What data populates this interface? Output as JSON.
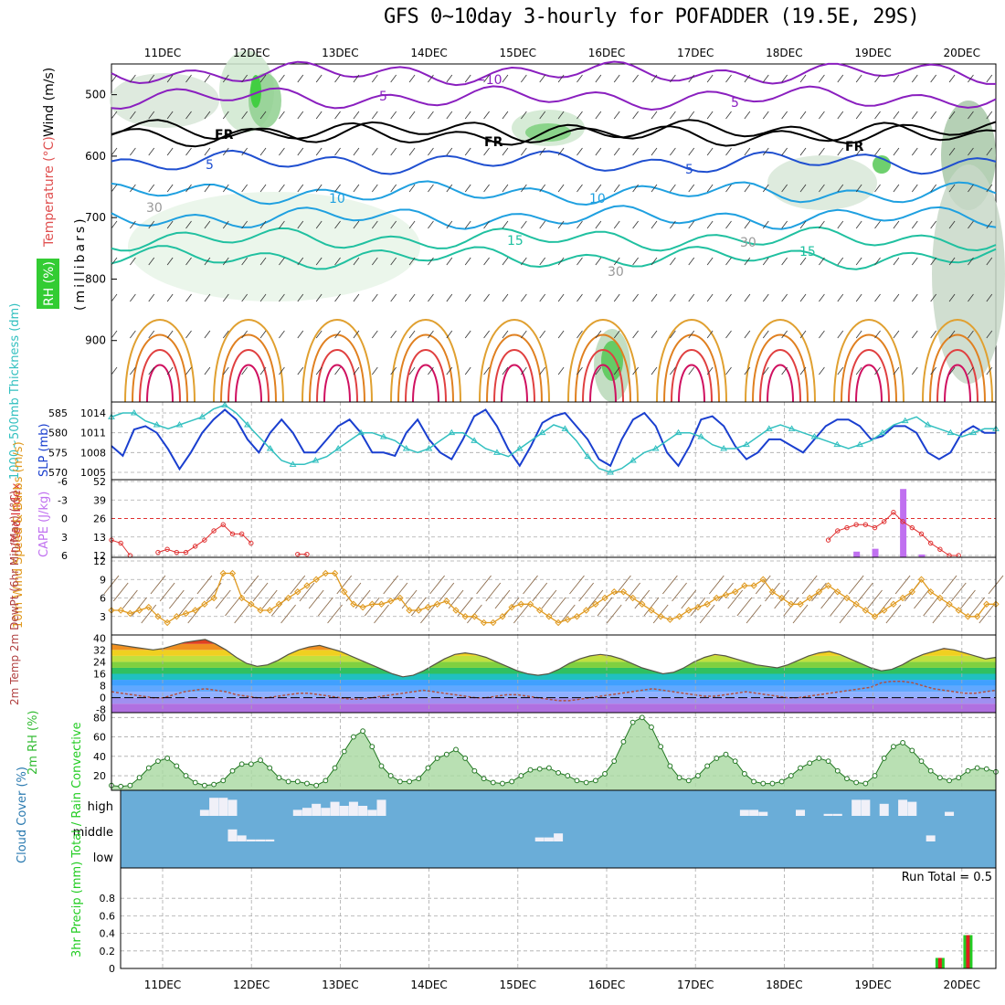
{
  "title": "GFS 0~10day 3-hourly for POFADDER (19.5E, 29S)",
  "colors": {
    "temperature_label": "#e05050",
    "wind_label": "#000000",
    "rh_label": "#22bb22",
    "slp": "#1a3fcf",
    "thickness": "#33c0c0",
    "lifted_index": "#e03030",
    "cape": "#c070f0",
    "wind10": "#e09a20",
    "rh2m": "#33bb33",
    "cloud_bg": "#6aadd8",
    "precip_total": "#22cc22",
    "precip_convective": "#e02020"
  },
  "chart_data": [
    {
      "panel": "upper-air",
      "type": "contour",
      "date_labels": [
        "11DEC",
        "12DEC",
        "13DEC",
        "14DEC",
        "15DEC",
        "16DEC",
        "17DEC",
        "18DEC",
        "19DEC",
        "20DEC"
      ],
      "ylabel_parts": [
        "RH (%)",
        "Temperature (°C)",
        "Wind (m/s)"
      ],
      "ylabel_unit": "(millibars)",
      "yticks": [
        "500",
        "600",
        "700",
        "800",
        "900"
      ],
      "ylim": [
        450,
        1000
      ],
      "contour_labels": [
        "−10",
        "5",
        "FR",
        "FR",
        "FR",
        "5",
        "5",
        "5",
        "10",
        "10",
        "15",
        "15",
        "30",
        "30",
        "30"
      ]
    },
    {
      "panel": "slp-thickness",
      "type": "line",
      "ylabel_left": "1000~500mb Thickness (dm)",
      "ylabel_right": "SLP (mb)",
      "yticks_thickness": [
        "585",
        "580",
        "575",
        "570"
      ],
      "yticks_slp": [
        "1014",
        "1011",
        "1008",
        "1005"
      ],
      "series": [
        {
          "name": "SLP",
          "values": [
            1009,
            1007.5,
            1011.5,
            1012,
            1011,
            1008.5,
            1005.5,
            1008,
            1011,
            1013,
            1014.5,
            1013,
            1010,
            1008,
            1011,
            1013,
            1011,
            1008,
            1008,
            1010,
            1012,
            1013,
            1011,
            1008,
            1008,
            1007.5,
            1011,
            1013,
            1010,
            1008,
            1007,
            1010,
            1013.5,
            1014.5,
            1012,
            1008.5,
            1006,
            1009,
            1012.5,
            1013.5,
            1014,
            1012,
            1010,
            1007,
            1006,
            1010,
            1013,
            1014,
            1012,
            1008,
            1006,
            1009,
            1013,
            1013.5,
            1012,
            1009,
            1007,
            1008,
            1010,
            1010,
            1009,
            1008,
            1010,
            1012,
            1013,
            1013,
            1012,
            1010,
            1010.5,
            1012,
            1012,
            1011,
            1008,
            1007,
            1008,
            1011,
            1012,
            1011,
            1011
          ]
        },
        {
          "name": "Thickness",
          "values": [
            584,
            585,
            585,
            583,
            582,
            581,
            582,
            583,
            584,
            586,
            587,
            585,
            582,
            579,
            576,
            573,
            572,
            572,
            573,
            574,
            576,
            578,
            580,
            580,
            579,
            578,
            576,
            575,
            576,
            578,
            580,
            580,
            578,
            576,
            575,
            574,
            576,
            578,
            580,
            582,
            581,
            578,
            574,
            571,
            570,
            571,
            573,
            575,
            576,
            578,
            580,
            580,
            579,
            577,
            576,
            576,
            577,
            579,
            581,
            582,
            581,
            580,
            579,
            578,
            577,
            576,
            577,
            578,
            580,
            582,
            583,
            584,
            582,
            581,
            580,
            579,
            580,
            581,
            581
          ]
        }
      ]
    },
    {
      "panel": "lifted-index-cape",
      "type": "line+bar",
      "ylabel_left": "Lifted Index",
      "ylabel_right": "CAPE (J/kg)",
      "yticks_li": [
        "-6",
        "-3",
        "0",
        "3",
        "6"
      ],
      "yticks_cape": [
        "52",
        "39",
        "26",
        "13",
        "12"
      ],
      "lifted_index_segments": [
        {
          "x": [
            0,
            1,
            2
          ],
          "y": [
            3.5,
            4,
            6
          ]
        },
        {
          "x": [
            5,
            6,
            7,
            8,
            9,
            10,
            11,
            12,
            13,
            14,
            15
          ],
          "y": [
            5.5,
            5,
            5.5,
            5.5,
            4.5,
            3.5,
            2,
            1,
            2.5,
            2.5,
            4
          ]
        },
        {
          "x": [
            20,
            21
          ],
          "y": [
            5.8,
            5.8
          ]
        },
        {
          "x": [
            77,
            78,
            79,
            80,
            81,
            82,
            83,
            84,
            85,
            86,
            87,
            88,
            89,
            90,
            91
          ],
          "y": [
            3.5,
            2,
            1.5,
            1,
            1,
            1.5,
            0.5,
            -1,
            0.5,
            1.5,
            2.5,
            4,
            5,
            6,
            6
          ]
        }
      ],
      "cape_bars": [
        {
          "x": 80,
          "value": 4
        },
        {
          "x": 82,
          "value": 6
        },
        {
          "x": 85,
          "value": 48
        },
        {
          "x": 87,
          "value": 2
        }
      ]
    },
    {
      "panel": "wind10m",
      "type": "line",
      "ylabel": "10m Wind Speed & Barbs (m/s)",
      "yticks": [
        "12",
        "9",
        "6",
        "3"
      ],
      "ylim": [
        0,
        12
      ],
      "values": [
        4,
        4,
        3.5,
        4,
        4.5,
        3,
        2,
        3,
        3.5,
        4,
        5,
        6,
        10,
        10,
        6,
        5,
        4,
        4,
        5,
        6,
        7,
        8,
        9,
        10,
        10,
        7,
        5,
        4.5,
        5,
        5,
        5.5,
        6,
        4,
        4,
        4.5,
        5,
        5.5,
        4,
        3,
        3,
        2,
        2,
        3,
        4.5,
        5,
        5,
        4,
        3,
        2,
        2.5,
        3,
        4,
        5,
        6,
        7,
        7,
        6,
        5,
        4,
        3,
        2.5,
        3,
        4,
        4.5,
        5,
        6,
        6.5,
        7,
        8,
        8,
        9,
        7,
        6,
        5,
        5,
        6,
        7,
        8,
        7,
        6,
        5,
        4,
        3,
        4,
        5,
        6,
        7,
        9,
        7,
        6,
        5,
        4,
        3,
        3,
        5,
        5
      ]
    },
    {
      "panel": "temperature",
      "type": "area",
      "ylabel": "2m Temp 2m DewPt (6hr Min/Max) (°C)",
      "yticks": [
        "40",
        "32",
        "24",
        "16",
        "8",
        "0",
        "-8"
      ],
      "ylim": [
        -10,
        42
      ],
      "temp": [
        36,
        35,
        34,
        33,
        32,
        33,
        35,
        37,
        38,
        39,
        36,
        32,
        27,
        23,
        21,
        22,
        25,
        29,
        32,
        34,
        35,
        33,
        31,
        28,
        25,
        22,
        19,
        16,
        14,
        15,
        18,
        22,
        26,
        29,
        30,
        29,
        27,
        24,
        21,
        18,
        16,
        15,
        16,
        19,
        23,
        26,
        28,
        29,
        28,
        26,
        23,
        20,
        18,
        16,
        17,
        20,
        24,
        27,
        29,
        28,
        26,
        24,
        22,
        21,
        20,
        22,
        25,
        28,
        30,
        31,
        29,
        26,
        23,
        20,
        18,
        19,
        22,
        26,
        29,
        31,
        33,
        32,
        30,
        28,
        26,
        27
      ],
      "dewpt": [
        4,
        3,
        2,
        1,
        0,
        0,
        2,
        4,
        5,
        6,
        5,
        4,
        2,
        1,
        0,
        0,
        1,
        2,
        3,
        3,
        2,
        1,
        0,
        -1,
        -1,
        0,
        1,
        2,
        3,
        4,
        5,
        4,
        3,
        2,
        1,
        0,
        0,
        1,
        2,
        2,
        1,
        0,
        -1,
        -2,
        -2,
        -1,
        0,
        1,
        2,
        3,
        4,
        5,
        6,
        5,
        4,
        3,
        2,
        1,
        1,
        2,
        3,
        4,
        3,
        2,
        1,
        0,
        0,
        1,
        2,
        3,
        4,
        5,
        6,
        7,
        10,
        11,
        11,
        10,
        8,
        6,
        5,
        4,
        3,
        3,
        4,
        5
      ]
    },
    {
      "panel": "rh2m",
      "type": "area",
      "ylabel": "2m RH (%)",
      "yticks": [
        "80",
        "60",
        "40",
        "20"
      ],
      "ylim": [
        5,
        85
      ],
      "values": [
        10,
        9,
        10,
        18,
        28,
        35,
        38,
        30,
        20,
        13,
        10,
        11,
        15,
        25,
        32,
        32,
        36,
        28,
        18,
        14,
        14,
        12,
        10,
        15,
        28,
        45,
        60,
        66,
        50,
        30,
        20,
        14,
        14,
        17,
        28,
        38,
        42,
        47,
        38,
        25,
        17,
        13,
        12,
        14,
        20,
        26,
        27,
        28,
        23,
        20,
        15,
        13,
        15,
        22,
        35,
        55,
        75,
        80,
        70,
        50,
        30,
        18,
        15,
        20,
        30,
        38,
        42,
        35,
        22,
        14,
        12,
        12,
        14,
        20,
        28,
        33,
        38,
        35,
        25,
        17,
        13,
        12,
        20,
        38,
        50,
        54,
        46,
        35,
        25,
        18,
        15,
        18,
        25,
        28,
        27,
        24
      ]
    },
    {
      "panel": "cloud-cover",
      "type": "bar",
      "ylabel": "Cloud Cover (%)",
      "levels": [
        "high",
        "middle",
        "low"
      ],
      "high": [
        {
          "x": 10,
          "v": 0.3
        },
        {
          "x": 11,
          "v": 0.9
        },
        {
          "x": 12,
          "v": 0.9
        },
        {
          "x": 13,
          "v": 0.8
        },
        {
          "x": 20,
          "v": 0.3
        },
        {
          "x": 21,
          "v": 0.4
        },
        {
          "x": 22,
          "v": 0.6
        },
        {
          "x": 23,
          "v": 0.4
        },
        {
          "x": 24,
          "v": 0.7
        },
        {
          "x": 25,
          "v": 0.5
        },
        {
          "x": 26,
          "v": 0.7
        },
        {
          "x": 27,
          "v": 0.5
        },
        {
          "x": 28,
          "v": 0.3
        },
        {
          "x": 29,
          "v": 0.8
        },
        {
          "x": 68,
          "v": 0.3
        },
        {
          "x": 69,
          "v": 0.3
        },
        {
          "x": 70,
          "v": 0.2
        },
        {
          "x": 74,
          "v": 0.3
        },
        {
          "x": 77,
          "v": 0.1
        },
        {
          "x": 78,
          "v": 0.1
        },
        {
          "x": 80,
          "v": 0.8
        },
        {
          "x": 81,
          "v": 0.8
        },
        {
          "x": 83,
          "v": 0.6
        },
        {
          "x": 85,
          "v": 0.8
        },
        {
          "x": 86,
          "v": 0.7
        },
        {
          "x": 90,
          "v": 0.2
        }
      ],
      "middle": [
        {
          "x": 13,
          "v": 0.6
        },
        {
          "x": 14,
          "v": 0.3
        },
        {
          "x": 15,
          "v": 0.1
        },
        {
          "x": 16,
          "v": 0.1
        },
        {
          "x": 17,
          "v": 0.1
        },
        {
          "x": 46,
          "v": 0.2
        },
        {
          "x": 47,
          "v": 0.2
        },
        {
          "x": 48,
          "v": 0.4
        },
        {
          "x": 88,
          "v": 0.3
        }
      ],
      "low": []
    },
    {
      "panel": "precip",
      "type": "bar",
      "ylabel": "3hr Precip (mm) Total / Rain Convective",
      "yticks": [
        "0.8",
        "0.6",
        "0.4",
        "0.2",
        "0"
      ],
      "ylim": [
        0,
        1
      ],
      "annotation": "Run Total = 0.5",
      "bars": [
        {
          "x": 89,
          "total": 0.12,
          "convective": 0.12
        },
        {
          "x": 92,
          "total": 0.38,
          "convective": 0.38
        }
      ]
    }
  ]
}
